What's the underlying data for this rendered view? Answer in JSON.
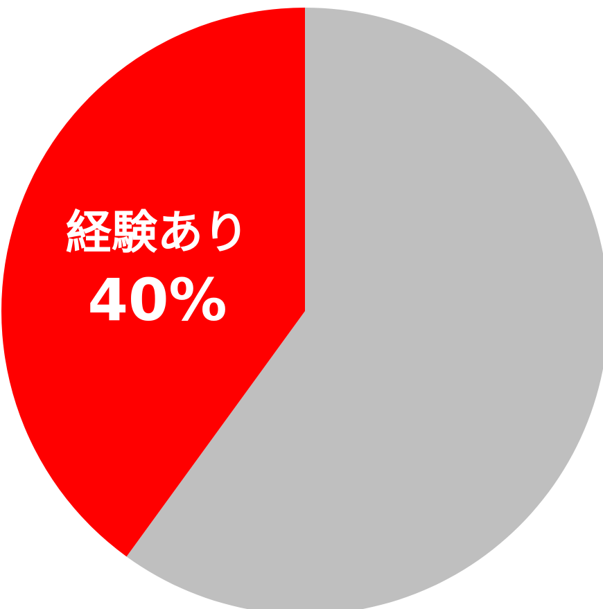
{
  "chart_data": {
    "type": "pie",
    "title": "",
    "start": "top",
    "direction": "clockwise",
    "slices": [
      {
        "label": "",
        "value": 60,
        "display": "",
        "color": "#BFBFBF"
      },
      {
        "label": "経験あり",
        "value": 40,
        "display": "40%",
        "color": "#FF0000"
      }
    ]
  }
}
